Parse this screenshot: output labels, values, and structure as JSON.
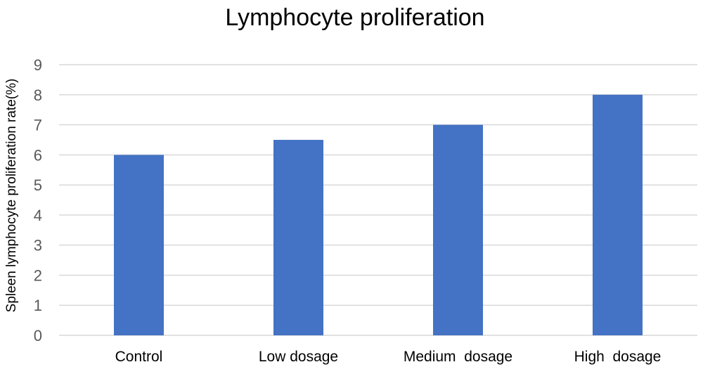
{
  "chart_data": {
    "type": "bar",
    "title": "Lymphocyte proliferation",
    "xlabel": "",
    "ylabel": "Spleen lymphocyte proliferation rate(%)",
    "categories": [
      "Control",
      "Low dosage",
      "Medium  dosage",
      "High  dosage"
    ],
    "values": [
      6,
      6.5,
      7,
      8
    ],
    "ylim": [
      0,
      9
    ],
    "yticks": [
      "0",
      "1",
      "2",
      "3",
      "4",
      "5",
      "6",
      "7",
      "8",
      "9"
    ],
    "grid": true,
    "bar_color": "#4472c4",
    "legend": "none"
  }
}
